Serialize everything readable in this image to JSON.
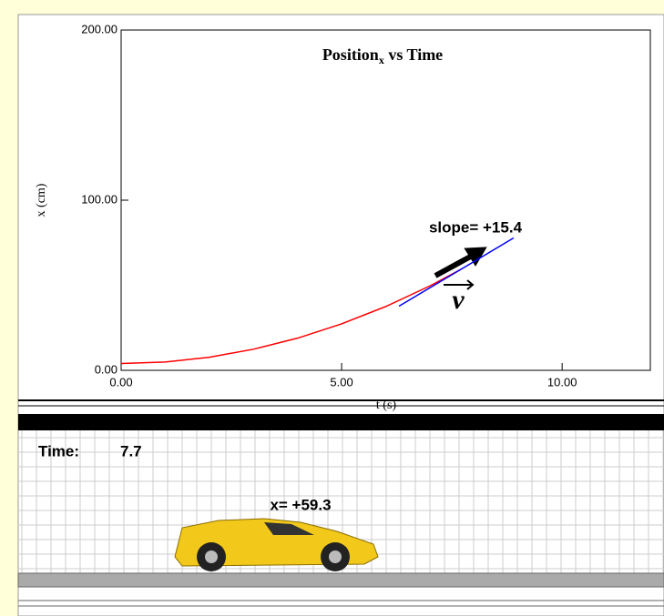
{
  "chart_data": {
    "type": "line",
    "title": "Position",
    "title_subscript": "x",
    "title_suffix": " vs Time",
    "x_label": "t (s)",
    "y_label": "x (cm)",
    "xlim": [
      0,
      12
    ],
    "ylim": [
      0,
      200
    ],
    "xticks": [
      {
        "value": 0,
        "label": "0.00"
      },
      {
        "value": 5,
        "label": "5.00"
      },
      {
        "value": 10,
        "label": "10.00"
      }
    ],
    "yticks": [
      {
        "value": 0,
        "label": "0.00"
      },
      {
        "value": 100,
        "label": "100.00"
      },
      {
        "value": 200,
        "label": "200.00"
      }
    ],
    "series": [
      {
        "color": "#ff0000",
        "x": [
          0,
          1,
          2,
          3,
          4,
          5,
          6,
          7,
          7.7
        ],
        "values": [
          4,
          4.9,
          7.7,
          12.4,
          18.9,
          27.3,
          37.5,
          49.6,
          59.3
        ]
      },
      {
        "color": "#0000ff",
        "x": [
          6.3,
          8.9
        ],
        "values": [
          37.7,
          77.8
        ]
      }
    ],
    "annotation": "slope= +15.4",
    "vector_label": "v"
  },
  "simulation": {
    "time_label": "Time:",
    "time_value": "7.7",
    "position_label": "x= +59.3"
  }
}
